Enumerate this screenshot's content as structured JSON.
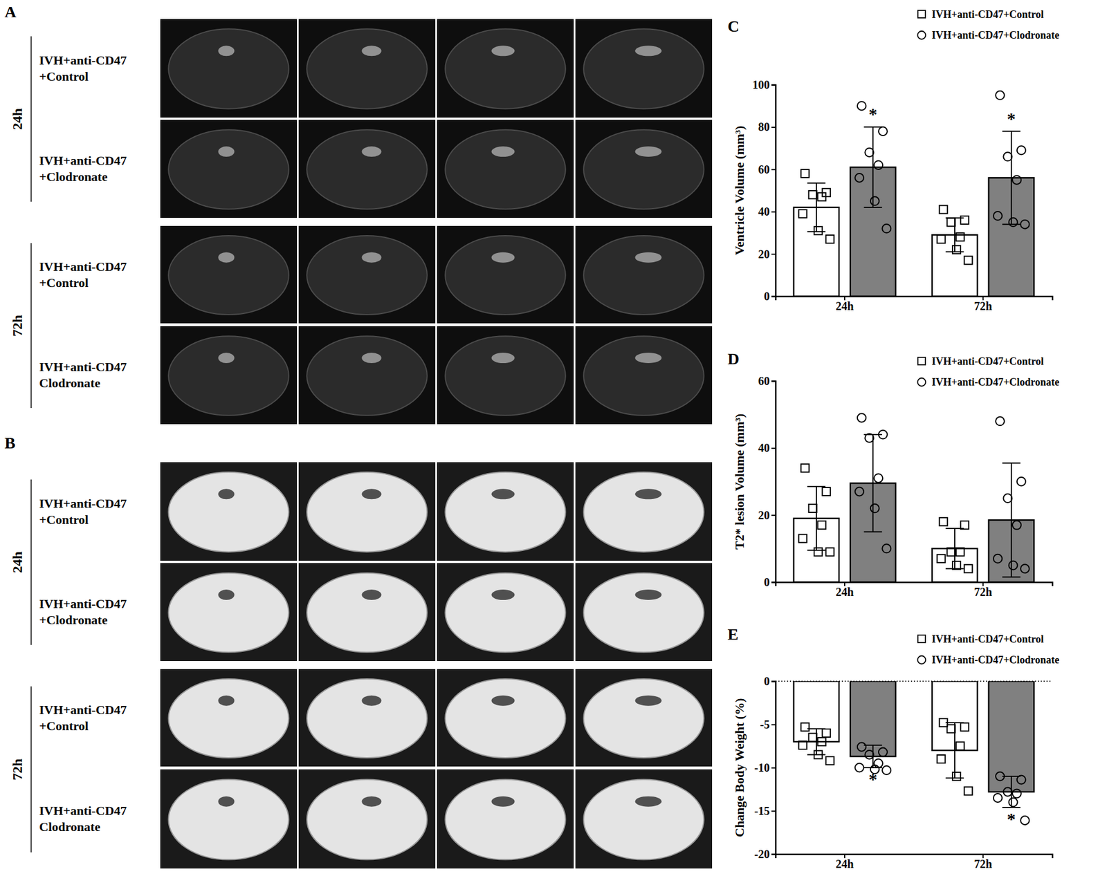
{
  "chart_data": [
    {
      "type": "bar",
      "panel_label": "C",
      "y_label": "Ventricle Volume (mm³)",
      "categories": [
        "24h",
        "72h"
      ],
      "ylim": [
        0,
        100
      ],
      "yticks": [
        0,
        20,
        40,
        60,
        80,
        100
      ],
      "legend": "upper right",
      "grid": false,
      "series": [
        {
          "name": "IVH+anti-CD47+Control",
          "color": "#ffffff",
          "marker": "square",
          "values": [
            42,
            29
          ],
          "errors": [
            11.5,
            8
          ],
          "points": [
            [
              58,
              49,
              48,
              47,
              39,
              31,
              27
            ],
            [
              41,
              36,
              35,
              28,
              27,
              22,
              17
            ]
          ]
        },
        {
          "name": "IVH+anti-CD47+Clodronate",
          "color": "#808080",
          "marker": "circle",
          "values": [
            61,
            56
          ],
          "errors": [
            19,
            22
          ],
          "points": [
            [
              90,
              78,
              68,
              62,
              56,
              45,
              32
            ],
            [
              95,
              69,
              66,
              55,
              38,
              35,
              34
            ]
          ],
          "significance": [
            "*",
            "*"
          ]
        }
      ]
    },
    {
      "type": "bar",
      "panel_label": "D",
      "y_label": "T2* lesion Volume (mm³)",
      "categories": [
        "24h",
        "72h"
      ],
      "ylim": [
        0,
        60
      ],
      "yticks": [
        0,
        20,
        40,
        60
      ],
      "legend": "upper right",
      "grid": false,
      "series": [
        {
          "name": "IVH+anti-CD47+Control",
          "color": "#ffffff",
          "marker": "square",
          "values": [
            19,
            10
          ],
          "errors": [
            9.5,
            6
          ],
          "points": [
            [
              34,
              27,
              22,
              17,
              13,
              9,
              9
            ],
            [
              18,
              17,
              9,
              9,
              7,
              5,
              4
            ]
          ]
        },
        {
          "name": "IVH+anti-CD47+Clodronate",
          "color": "#808080",
          "marker": "circle",
          "values": [
            29.5,
            18.5
          ],
          "errors": [
            14.5,
            17
          ],
          "points": [
            [
              49,
              44,
              43,
              31,
              27,
              22,
              10
            ],
            [
              48,
              30,
              25,
              17,
              7,
              5,
              4
            ]
          ]
        }
      ]
    },
    {
      "type": "bar",
      "panel_label": "E",
      "y_label": "Change Body Weight (%)",
      "categories": [
        "24h",
        "72h"
      ],
      "ylim": [
        -20,
        0
      ],
      "yticks": [
        -20,
        -15,
        -10,
        -5,
        0
      ],
      "legend": "upper right",
      "grid": false,
      "series": [
        {
          "name": "IVH+anti-CD47+Control",
          "color": "#ffffff",
          "marker": "square",
          "values": [
            -7,
            -8
          ],
          "errors": [
            1.5,
            3.2
          ],
          "points": [
            [
              -5.3,
              -6,
              -6.5,
              -7,
              -7.4,
              -8.5,
              -9.2
            ],
            [
              -4.8,
              -5.3,
              -5.5,
              -7.5,
              -9,
              -11,
              -12.7
            ]
          ]
        },
        {
          "name": "IVH+anti-CD47+Clodronate",
          "color": "#808080",
          "marker": "circle",
          "values": [
            -8.7,
            -12.8
          ],
          "errors": [
            1.3,
            1.8
          ],
          "points": [
            [
              -7.6,
              -8.2,
              -8.5,
              -9.5,
              -10,
              -10.2,
              -10.3
            ],
            [
              -11,
              -11.4,
              -12.8,
              -13,
              -13.5,
              -14,
              -16.1
            ]
          ],
          "significance": [
            "*",
            "*"
          ]
        }
      ]
    }
  ],
  "image_panels": [
    {
      "label": "A",
      "groups": [
        {
          "time": "24h",
          "rows": [
            [
              "IVH+anti-CD47",
              "+Control"
            ],
            [
              "IVH+anti-CD47",
              "+Clodronate"
            ]
          ]
        },
        {
          "time": "72h",
          "rows": [
            [
              "IVH+anti-CD47",
              "+Control"
            ],
            [
              "IVH+anti-CD47",
              "Clodronate"
            ]
          ]
        }
      ]
    },
    {
      "label": "B",
      "groups": [
        {
          "time": "24h",
          "rows": [
            [
              "IVH+anti-CD47",
              "+Control"
            ],
            [
              "IVH+anti-CD47",
              "+Clodronate"
            ]
          ]
        },
        {
          "time": "72h",
          "rows": [
            [
              "IVH+anti-CD47",
              "+Control"
            ],
            [
              "IVH+anti-CD47",
              "Clodronate"
            ]
          ]
        }
      ]
    }
  ]
}
